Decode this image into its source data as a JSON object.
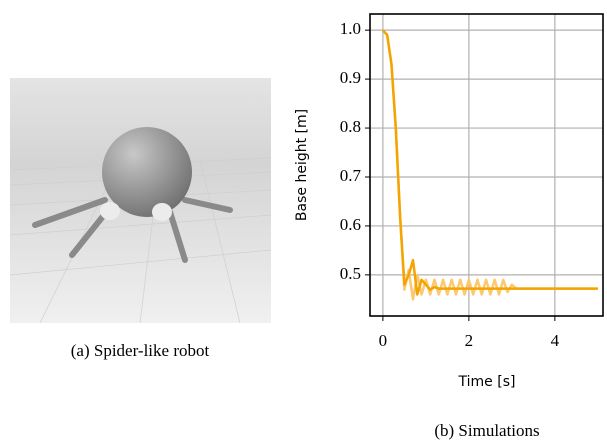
{
  "captions": [
    "(a) Spider-like robot",
    "(b) Simulations"
  ],
  "chart_data": {
    "type": "line",
    "xlabel": "Time [s]",
    "ylabel": "Base height [m]",
    "x": [
      0,
      0.1,
      0.2,
      0.3,
      0.4,
      0.5,
      0.6,
      0.7,
      0.8,
      0.9,
      1,
      1.1,
      1.2,
      1.3,
      1.4,
      1.5,
      1.6,
      1.7,
      1.8,
      1.9,
      2,
      2.1,
      2.2,
      2.3,
      2.4,
      2.5,
      2.6,
      2.7,
      2.8,
      2.9,
      3,
      3.1,
      3.2,
      3.3,
      3.4,
      3.5,
      3.6,
      3.7,
      3.8,
      3.9,
      4,
      4.1,
      4.2,
      4.3,
      4.4,
      4.5,
      4.6,
      4.7,
      4.8,
      4.9,
      5
    ],
    "series": [
      {
        "color": "#fbc970",
        "values": [
          1,
          0.99,
          0.93,
          0.8,
          0.62,
          0.47,
          0.51,
          0.45,
          0.5,
          0.46,
          0.49,
          0.46,
          0.49,
          0.46,
          0.49,
          0.46,
          0.49,
          0.46,
          0.49,
          0.46,
          0.49,
          0.46,
          0.49,
          0.46,
          0.49,
          0.46,
          0.49,
          0.46,
          0.49,
          0.465,
          0.48,
          0.472,
          0.472,
          0.472,
          0.472,
          0.472,
          0.472,
          0.472,
          0.472,
          0.472,
          0.472,
          0.472,
          0.472,
          0.472,
          0.472,
          0.472,
          0.472,
          0.472,
          0.472,
          0.472,
          0.472
        ]
      },
      {
        "color": "#f5a300",
        "values": [
          1,
          0.99,
          0.93,
          0.8,
          0.62,
          0.48,
          0.5,
          0.53,
          0.46,
          0.49,
          0.48,
          0.47,
          0.475,
          0.472,
          0.472,
          0.472,
          0.472,
          0.472,
          0.472,
          0.472,
          0.472,
          0.472,
          0.472,
          0.472,
          0.472,
          0.472,
          0.472,
          0.472,
          0.472,
          0.472,
          0.472,
          0.472,
          0.472,
          0.472,
          0.472,
          0.472,
          0.472,
          0.472,
          0.472,
          0.472,
          0.472,
          0.472,
          0.472,
          0.472,
          0.472,
          0.472,
          0.472,
          0.472,
          0.472,
          0.472,
          0.472
        ]
      }
    ],
    "xlim": [
      -0.3,
      5.12
    ],
    "ylim": [
      0.416,
      1.033
    ],
    "xticks": [
      0,
      2,
      4
    ],
    "yticks": [
      0.5,
      0.6,
      0.7,
      0.8,
      0.9,
      {
        "value": 1,
        "label": "1.0"
      }
    ],
    "grid": true
  }
}
